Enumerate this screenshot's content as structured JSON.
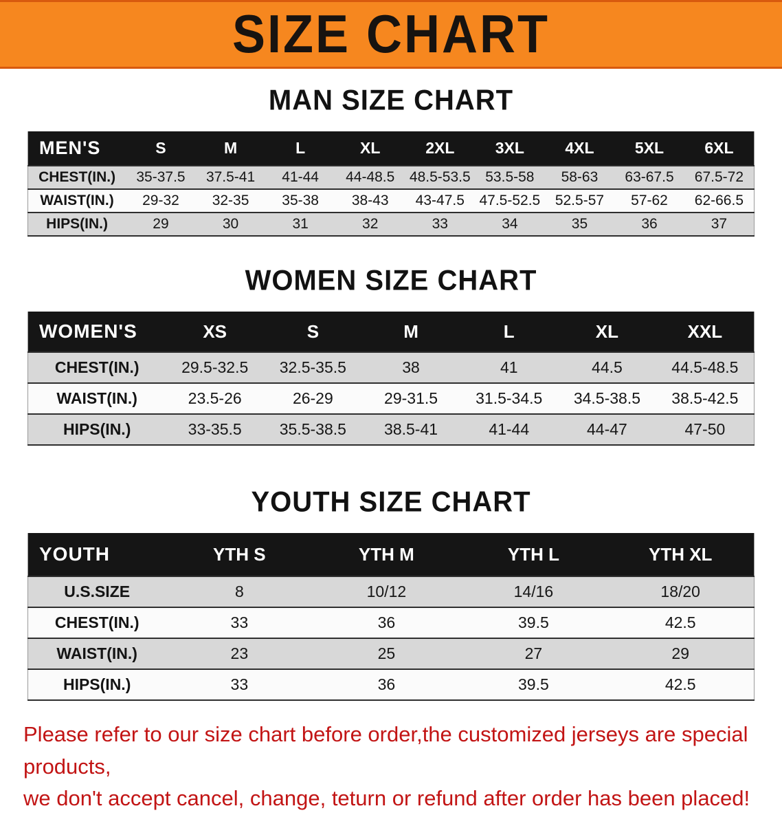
{
  "banner": {
    "title": "SIZE CHART"
  },
  "colors": {
    "banner_bg": "#f6871f",
    "banner_text": "#171310",
    "header_bg": "#151515",
    "header_text": "#ffffff",
    "stripe": "#d8d8d8",
    "row_alt": "#fbfbfb",
    "rule": "#2e2e2e",
    "footer_text": "#c21414"
  },
  "chart_data": [
    {
      "type": "table",
      "title": "MAN SIZE CHART",
      "columns": [
        "MEN'S",
        "S",
        "M",
        "L",
        "XL",
        "2XL",
        "3XL",
        "4XL",
        "5XL",
        "6XL"
      ],
      "rows": [
        [
          "CHEST(IN.)",
          "35-37.5",
          "37.5-41",
          "41-44",
          "44-48.5",
          "48.5-53.5",
          "53.5-58",
          "58-63",
          "63-67.5",
          "67.5-72"
        ],
        [
          "WAIST(IN.)",
          "29-32",
          "32-35",
          "35-38",
          "38-43",
          "43-47.5",
          "47.5-52.5",
          "52.5-57",
          "57-62",
          "62-66.5"
        ],
        [
          "HIPS(IN.)",
          "29",
          "30",
          "31",
          "32",
          "33",
          "34",
          "35",
          "36",
          "37"
        ]
      ]
    },
    {
      "type": "table",
      "title": "WOMEN SIZE CHART",
      "columns": [
        "WOMEN'S",
        "XS",
        "S",
        "M",
        "L",
        "XL",
        "XXL"
      ],
      "rows": [
        [
          "CHEST(IN.)",
          "29.5-32.5",
          "32.5-35.5",
          "38",
          "41",
          "44.5",
          "44.5-48.5"
        ],
        [
          "WAIST(IN.)",
          "23.5-26",
          "26-29",
          "29-31.5",
          "31.5-34.5",
          "34.5-38.5",
          "38.5-42.5"
        ],
        [
          "HIPS(IN.)",
          "33-35.5",
          "35.5-38.5",
          "38.5-41",
          "41-44",
          "44-47",
          "47-50"
        ]
      ]
    },
    {
      "type": "table",
      "title": "YOUTH SIZE CHART",
      "columns": [
        "YOUTH",
        "YTH S",
        "YTH M",
        "YTH L",
        "YTH XL"
      ],
      "rows": [
        [
          "U.S.SIZE",
          "8",
          "10/12",
          "14/16",
          "18/20"
        ],
        [
          "CHEST(IN.)",
          "33",
          "36",
          "39.5",
          "42.5"
        ],
        [
          "WAIST(IN.)",
          "23",
          "25",
          "27",
          "29"
        ],
        [
          "HIPS(IN.)",
          "33",
          "36",
          "39.5",
          "42.5"
        ]
      ]
    }
  ],
  "footer": {
    "line1": "Please refer to our size chart before order,the customized jerseys are special products,",
    "line2": "we don't accept cancel, change, teturn or refund after order has been placed!"
  }
}
